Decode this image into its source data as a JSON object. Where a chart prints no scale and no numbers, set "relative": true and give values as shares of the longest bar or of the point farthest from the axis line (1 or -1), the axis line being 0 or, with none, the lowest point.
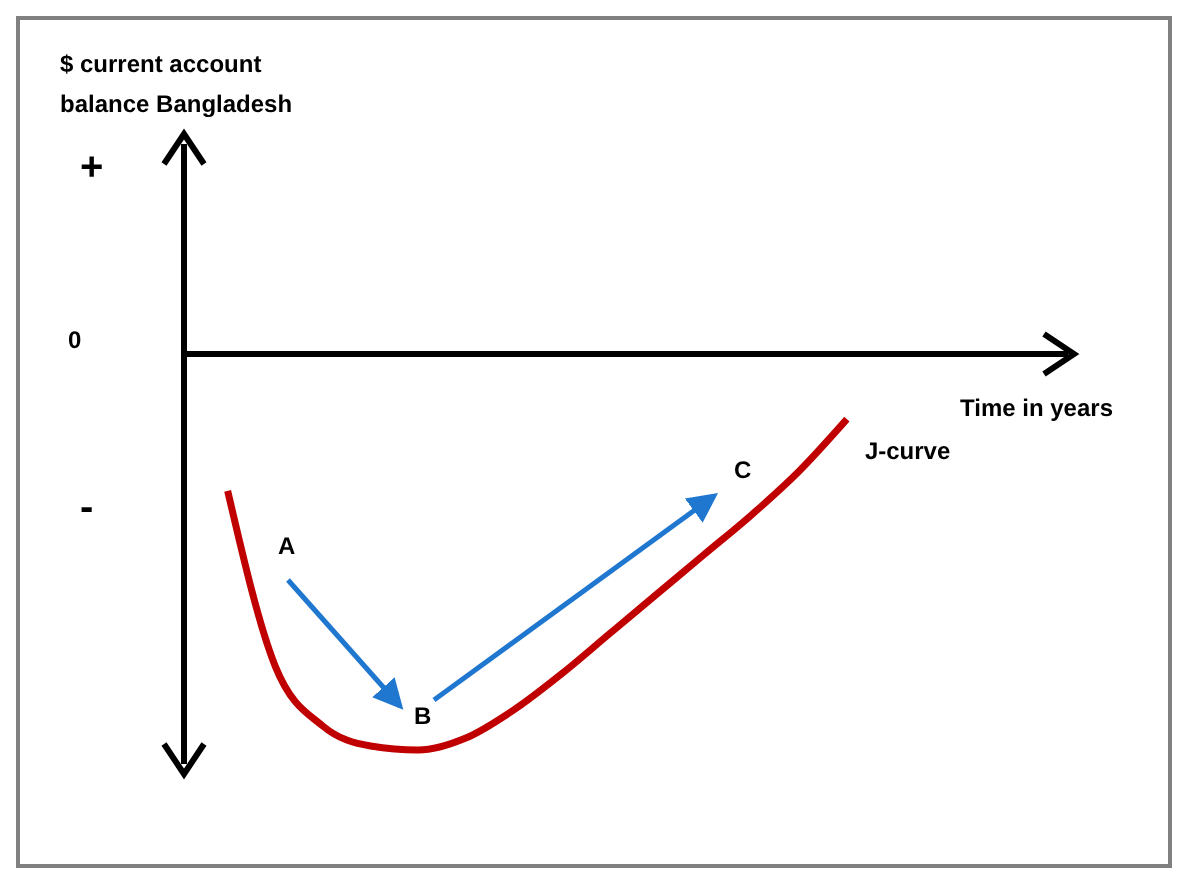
{
  "chart_data": {
    "type": "line",
    "relative": true,
    "xlabel": "Time in years",
    "categories": [
      null,
      null,
      null,
      null,
      null,
      null,
      null,
      null,
      null,
      null,
      null,
      null,
      null,
      null
    ],
    "series": [
      {
        "name": "J-curve",
        "color": "#c00000",
        "values": [
          -0.35,
          -0.79,
          -0.94,
          -0.99,
          -1,
          -0.97,
          -0.9,
          -0.81,
          -0.71,
          -0.61,
          -0.51,
          -0.41,
          -0.3,
          -0.17
        ]
      }
    ],
    "annotations": [
      "$ current account balance Bangladesh",
      "+",
      "0",
      "-",
      "A",
      "B",
      "C"
    ],
    "marker": "none",
    "line_style": "solid",
    "grid": false
  }
}
